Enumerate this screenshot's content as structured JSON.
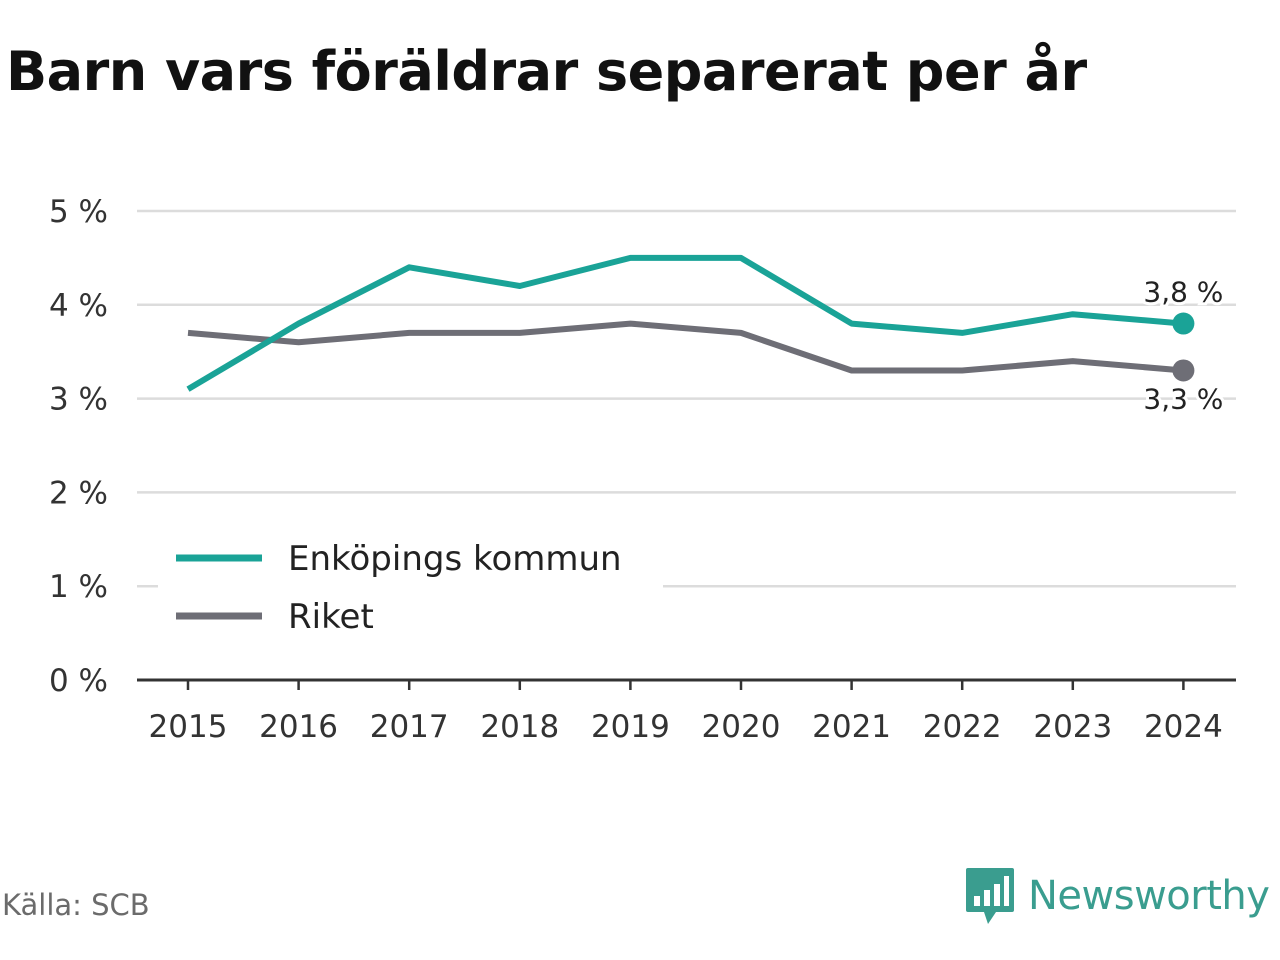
{
  "title": "Barn vars föräldrar separerat per år",
  "source": "Källa: SCB",
  "brand": {
    "name": "Newsworthy",
    "logo_icon": "bar-chart-speech-bubble-icon",
    "color": "#3a9d8f"
  },
  "chart_data": {
    "type": "line",
    "x": [
      "2015",
      "2016",
      "2017",
      "2018",
      "2019",
      "2020",
      "2021",
      "2022",
      "2023",
      "2024"
    ],
    "y_ticks": [
      {
        "value": 0,
        "label": "0 %"
      },
      {
        "value": 1,
        "label": "1 %"
      },
      {
        "value": 2,
        "label": "2 %"
      },
      {
        "value": 3,
        "label": "3 %"
      },
      {
        "value": 4,
        "label": "4 %"
      },
      {
        "value": 5,
        "label": "5 %"
      }
    ],
    "ylim": [
      0,
      5
    ],
    "grid": true,
    "legend_position": "bottom-left",
    "series": [
      {
        "name": "Enköpings kommun",
        "color": "#1aa397",
        "values": [
          3.1,
          3.8,
          4.4,
          4.2,
          4.5,
          4.5,
          3.8,
          3.7,
          3.9,
          3.8
        ],
        "end_label": "3,8 %",
        "end_label_position": "above"
      },
      {
        "name": "Riket",
        "color": "#6e6e76",
        "values": [
          3.7,
          3.6,
          3.7,
          3.7,
          3.8,
          3.7,
          3.3,
          3.3,
          3.4,
          3.3
        ],
        "end_label": "3,3 %",
        "end_label_position": "below"
      }
    ]
  }
}
